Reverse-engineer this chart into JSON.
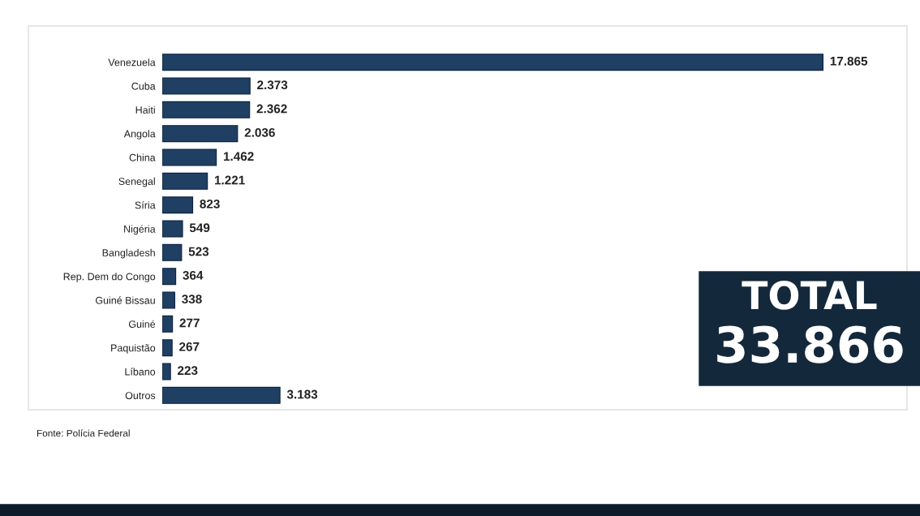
{
  "chart_data": {
    "type": "bar",
    "orientation": "horizontal",
    "color": "#1f3f63",
    "categories": [
      "Venezuela",
      "Cuba",
      "Haiti",
      "Angola",
      "China",
      "Senegal",
      "Síria",
      "Nigéria",
      "Bangladesh",
      "Rep. Dem do Congo",
      "Guiné Bissau",
      "Guiné",
      "Paquistão",
      "Líbano",
      "Outros"
    ],
    "values": [
      17865,
      2373,
      2362,
      2036,
      1462,
      1221,
      823,
      549,
      523,
      364,
      338,
      277,
      267,
      223,
      3183
    ],
    "value_labels": [
      "17.865",
      "2.373",
      "2.362",
      "2.036",
      "1.462",
      "1.221",
      "823",
      "549",
      "523",
      "364",
      "338",
      "277",
      "267",
      "223",
      "3.183"
    ],
    "annotations": [
      "TOTAL",
      "33.866",
      "Fonte: Polícia Federal"
    ],
    "grid": false,
    "legend": false
  }
}
